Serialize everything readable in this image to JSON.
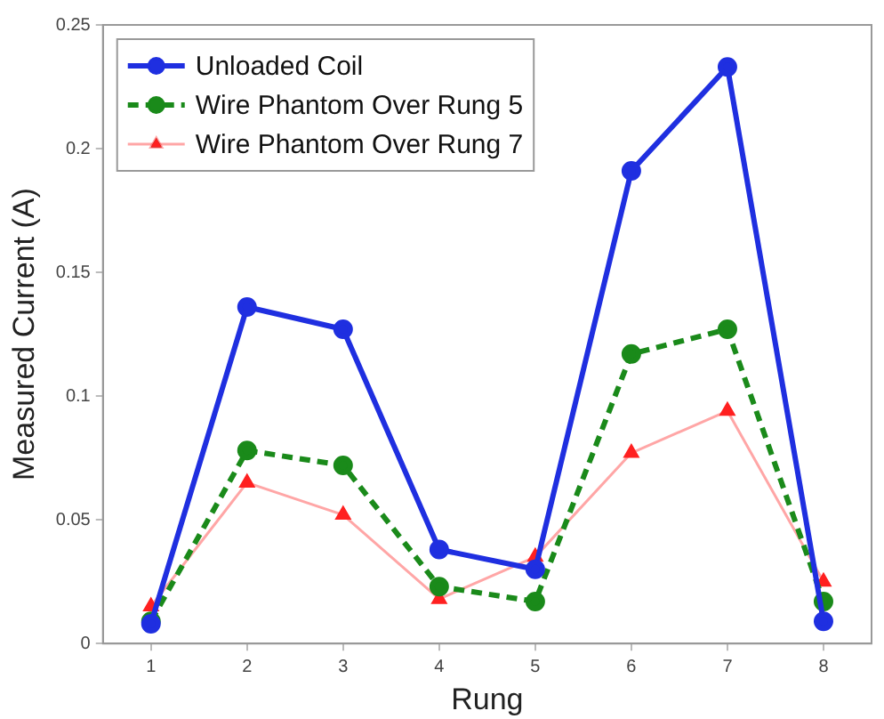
{
  "chart_data": {
    "type": "line",
    "xlabel": "Rung",
    "ylabel": "Measured Current (A)",
    "x": [
      1,
      2,
      3,
      4,
      5,
      6,
      7,
      8
    ],
    "xlim": [
      0.5,
      8.5
    ],
    "xticks": [
      1,
      2,
      3,
      4,
      5,
      6,
      7,
      8
    ],
    "ylim": [
      0,
      0.25
    ],
    "yticks": [
      0,
      0.05,
      0.1,
      0.15,
      0.2,
      0.25
    ],
    "grid": false,
    "legend": "top left",
    "series": [
      {
        "name": "Unloaded Coil",
        "color": "#1f2fe0",
        "marker": "circle",
        "line_style": "solid",
        "values": [
          0.008,
          0.136,
          0.127,
          0.038,
          0.03,
          0.191,
          0.233,
          0.009
        ]
      },
      {
        "name": "Wire Phantom Over Rung 5",
        "color": "#1a8a1a",
        "marker": "circle",
        "line_style": "dashed",
        "values": [
          0.009,
          0.078,
          0.072,
          0.023,
          0.017,
          0.117,
          0.127,
          0.017
        ]
      },
      {
        "name": "Wire Phantom Over Rung 7",
        "color": "#ff2020",
        "marker": "triangle",
        "line_style": "solid",
        "values": [
          0.015,
          0.065,
          0.052,
          0.018,
          0.035,
          0.077,
          0.094,
          0.025
        ]
      }
    ]
  }
}
